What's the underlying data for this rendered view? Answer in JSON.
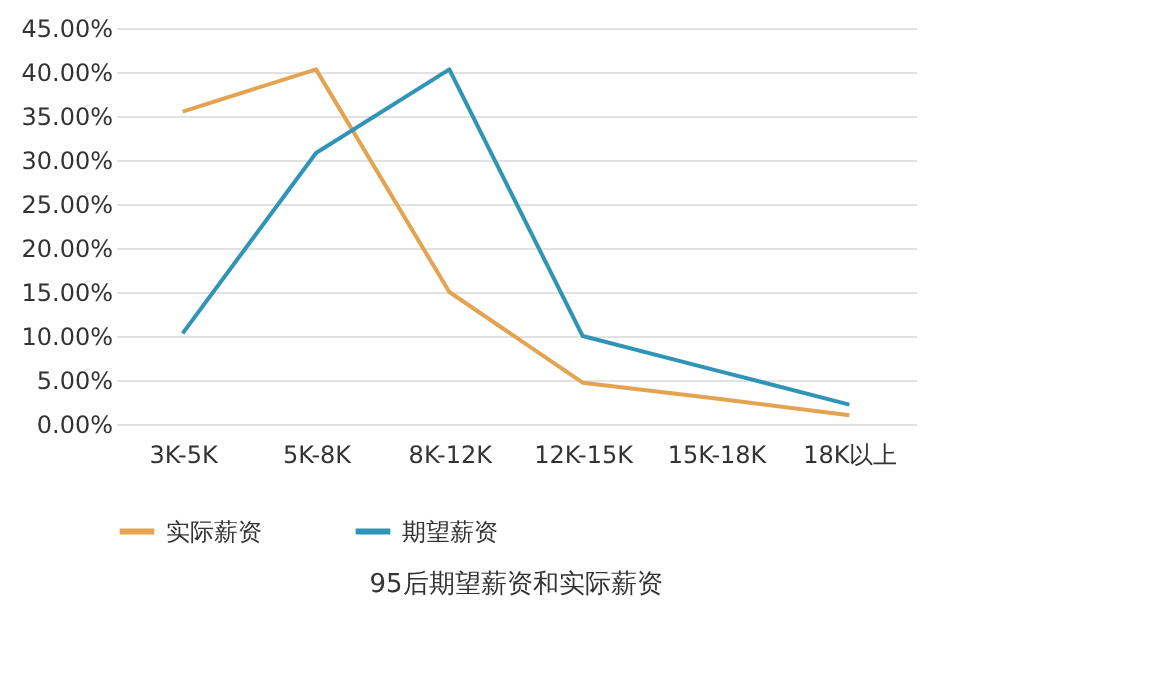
{
  "chart_data": {
    "type": "line",
    "title": "95后期望薪资和实际薪资",
    "categories": [
      "3K-5K",
      "5K-8K",
      "8K-12K",
      "12K-15K",
      "15K-18K",
      "18K以上"
    ],
    "series": [
      {
        "name": "实际薪资",
        "color": "#e3a351",
        "values": [
          35.5,
          40.3,
          15,
          4.7,
          2.9,
          1.0
        ]
      },
      {
        "name": "期望薪资",
        "color": "#2f94b5",
        "values": [
          10.3,
          30.8,
          40.3,
          10,
          6.1,
          2.2
        ]
      }
    ],
    "ylim": [
      0,
      45
    ],
    "yticks": [
      {
        "value": 0,
        "label": "0.00%"
      },
      {
        "value": 5,
        "label": "5.00%"
      },
      {
        "value": 10,
        "label": "10.00%"
      },
      {
        "value": 15,
        "label": "15.00%"
      },
      {
        "value": 20,
        "label": "20.00%"
      },
      {
        "value": 25,
        "label": "25.00%"
      },
      {
        "value": 30,
        "label": "30.00%"
      },
      {
        "value": 35,
        "label": "35.00%"
      },
      {
        "value": 40,
        "label": "40.00%"
      },
      {
        "value": 45,
        "label": "45.00%"
      }
    ],
    "grid": "y",
    "legend": "bottom",
    "marker": "none",
    "line_style": "solid"
  }
}
